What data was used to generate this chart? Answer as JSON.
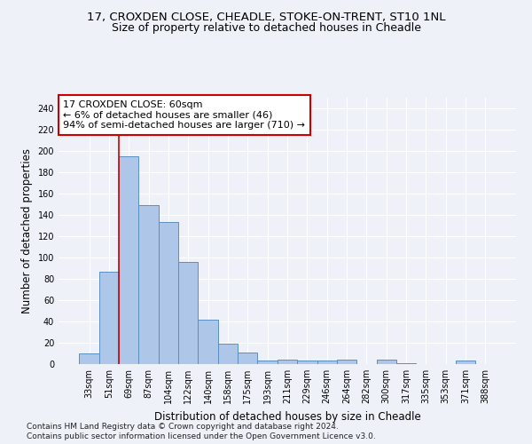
{
  "title_line1": "17, CROXDEN CLOSE, CHEADLE, STOKE-ON-TRENT, ST10 1NL",
  "title_line2": "Size of property relative to detached houses in Cheadle",
  "xlabel": "Distribution of detached houses by size in Cheadle",
  "ylabel": "Number of detached properties",
  "categories": [
    "33sqm",
    "51sqm",
    "69sqm",
    "87sqm",
    "104sqm",
    "122sqm",
    "140sqm",
    "158sqm",
    "175sqm",
    "193sqm",
    "211sqm",
    "229sqm",
    "246sqm",
    "264sqm",
    "282sqm",
    "300sqm",
    "317sqm",
    "335sqm",
    "353sqm",
    "371sqm",
    "388sqm"
  ],
  "values": [
    10,
    87,
    195,
    149,
    133,
    96,
    42,
    19,
    11,
    3,
    4,
    3,
    3,
    4,
    0,
    4,
    1,
    0,
    0,
    3,
    0
  ],
  "bar_color": "#aec6e8",
  "bar_edge_color": "#5a8fc0",
  "annotation_text": "17 CROXDEN CLOSE: 60sqm\n← 6% of detached houses are smaller (46)\n94% of semi-detached houses are larger (710) →",
  "annotation_box_color": "#ffffff",
  "annotation_box_edge_color": "#cc0000",
  "vline_color": "#cc0000",
  "vline_x_index": 1,
  "ylim": [
    0,
    250
  ],
  "yticks": [
    0,
    20,
    40,
    60,
    80,
    100,
    120,
    140,
    160,
    180,
    200,
    220,
    240
  ],
  "footnote1": "Contains HM Land Registry data © Crown copyright and database right 2024.",
  "footnote2": "Contains public sector information licensed under the Open Government Licence v3.0.",
  "background_color": "#eef2f8",
  "grid_color": "#ffffff",
  "title_fontsize": 9.5,
  "subtitle_fontsize": 9,
  "axis_label_fontsize": 8.5,
  "tick_fontsize": 7,
  "annotation_fontsize": 8,
  "footnote_fontsize": 6.5
}
